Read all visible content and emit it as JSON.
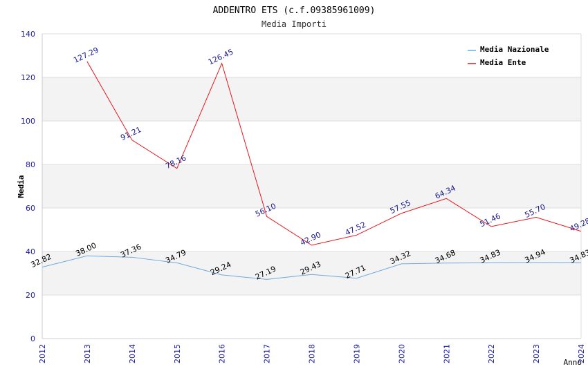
{
  "chart_data": {
    "type": "line",
    "title": "ADDENTRO ETS (c.f.09385961009)",
    "subtitle": "Media Importi",
    "xlabel": "Anno",
    "ylabel": "Media",
    "ylim": [
      0,
      140
    ],
    "yticks": [
      0,
      20,
      40,
      60,
      80,
      100,
      120,
      140
    ],
    "x": [
      "2012",
      "2013",
      "2014",
      "2015",
      "2016",
      "2017",
      "2018",
      "2019",
      "2020",
      "2021",
      "2022",
      "2023",
      "2024"
    ],
    "legend_position": "top-right",
    "series": [
      {
        "name": "Media Nazionale",
        "color": "#6fa8dc",
        "label_color": "#000000",
        "values": [
          32.82,
          38.0,
          37.36,
          34.79,
          29.24,
          27.19,
          29.43,
          27.71,
          34.32,
          34.68,
          34.83,
          34.94,
          34.83
        ],
        "labels": [
          "32.82",
          "38.00",
          "37.36",
          "34.79",
          "29.24",
          "27.19",
          "29.43",
          "27.71",
          "34.32",
          "34.68",
          "34.83",
          "34.94",
          "34.83"
        ]
      },
      {
        "name": "Media Ente",
        "color": "#e8141b",
        "label_color": "#1a1a8c",
        "values": [
          null,
          127.29,
          91.21,
          78.16,
          126.45,
          56.1,
          42.9,
          47.52,
          57.55,
          64.34,
          51.46,
          55.7,
          49.28
        ],
        "labels": [
          "",
          "127.29",
          "91.21",
          "78.16",
          "126.45",
          "56.10",
          "42.90",
          "47.52",
          "57.55",
          "64.34",
          "51.46",
          "55.70",
          "49.28"
        ]
      }
    ],
    "colors": {
      "band": "#f3f3f3",
      "grid": "#dddddd",
      "axis": "#cccccc",
      "tick_label": "#1a1aa6",
      "title": "#000000",
      "subtitle": "#333333"
    }
  }
}
